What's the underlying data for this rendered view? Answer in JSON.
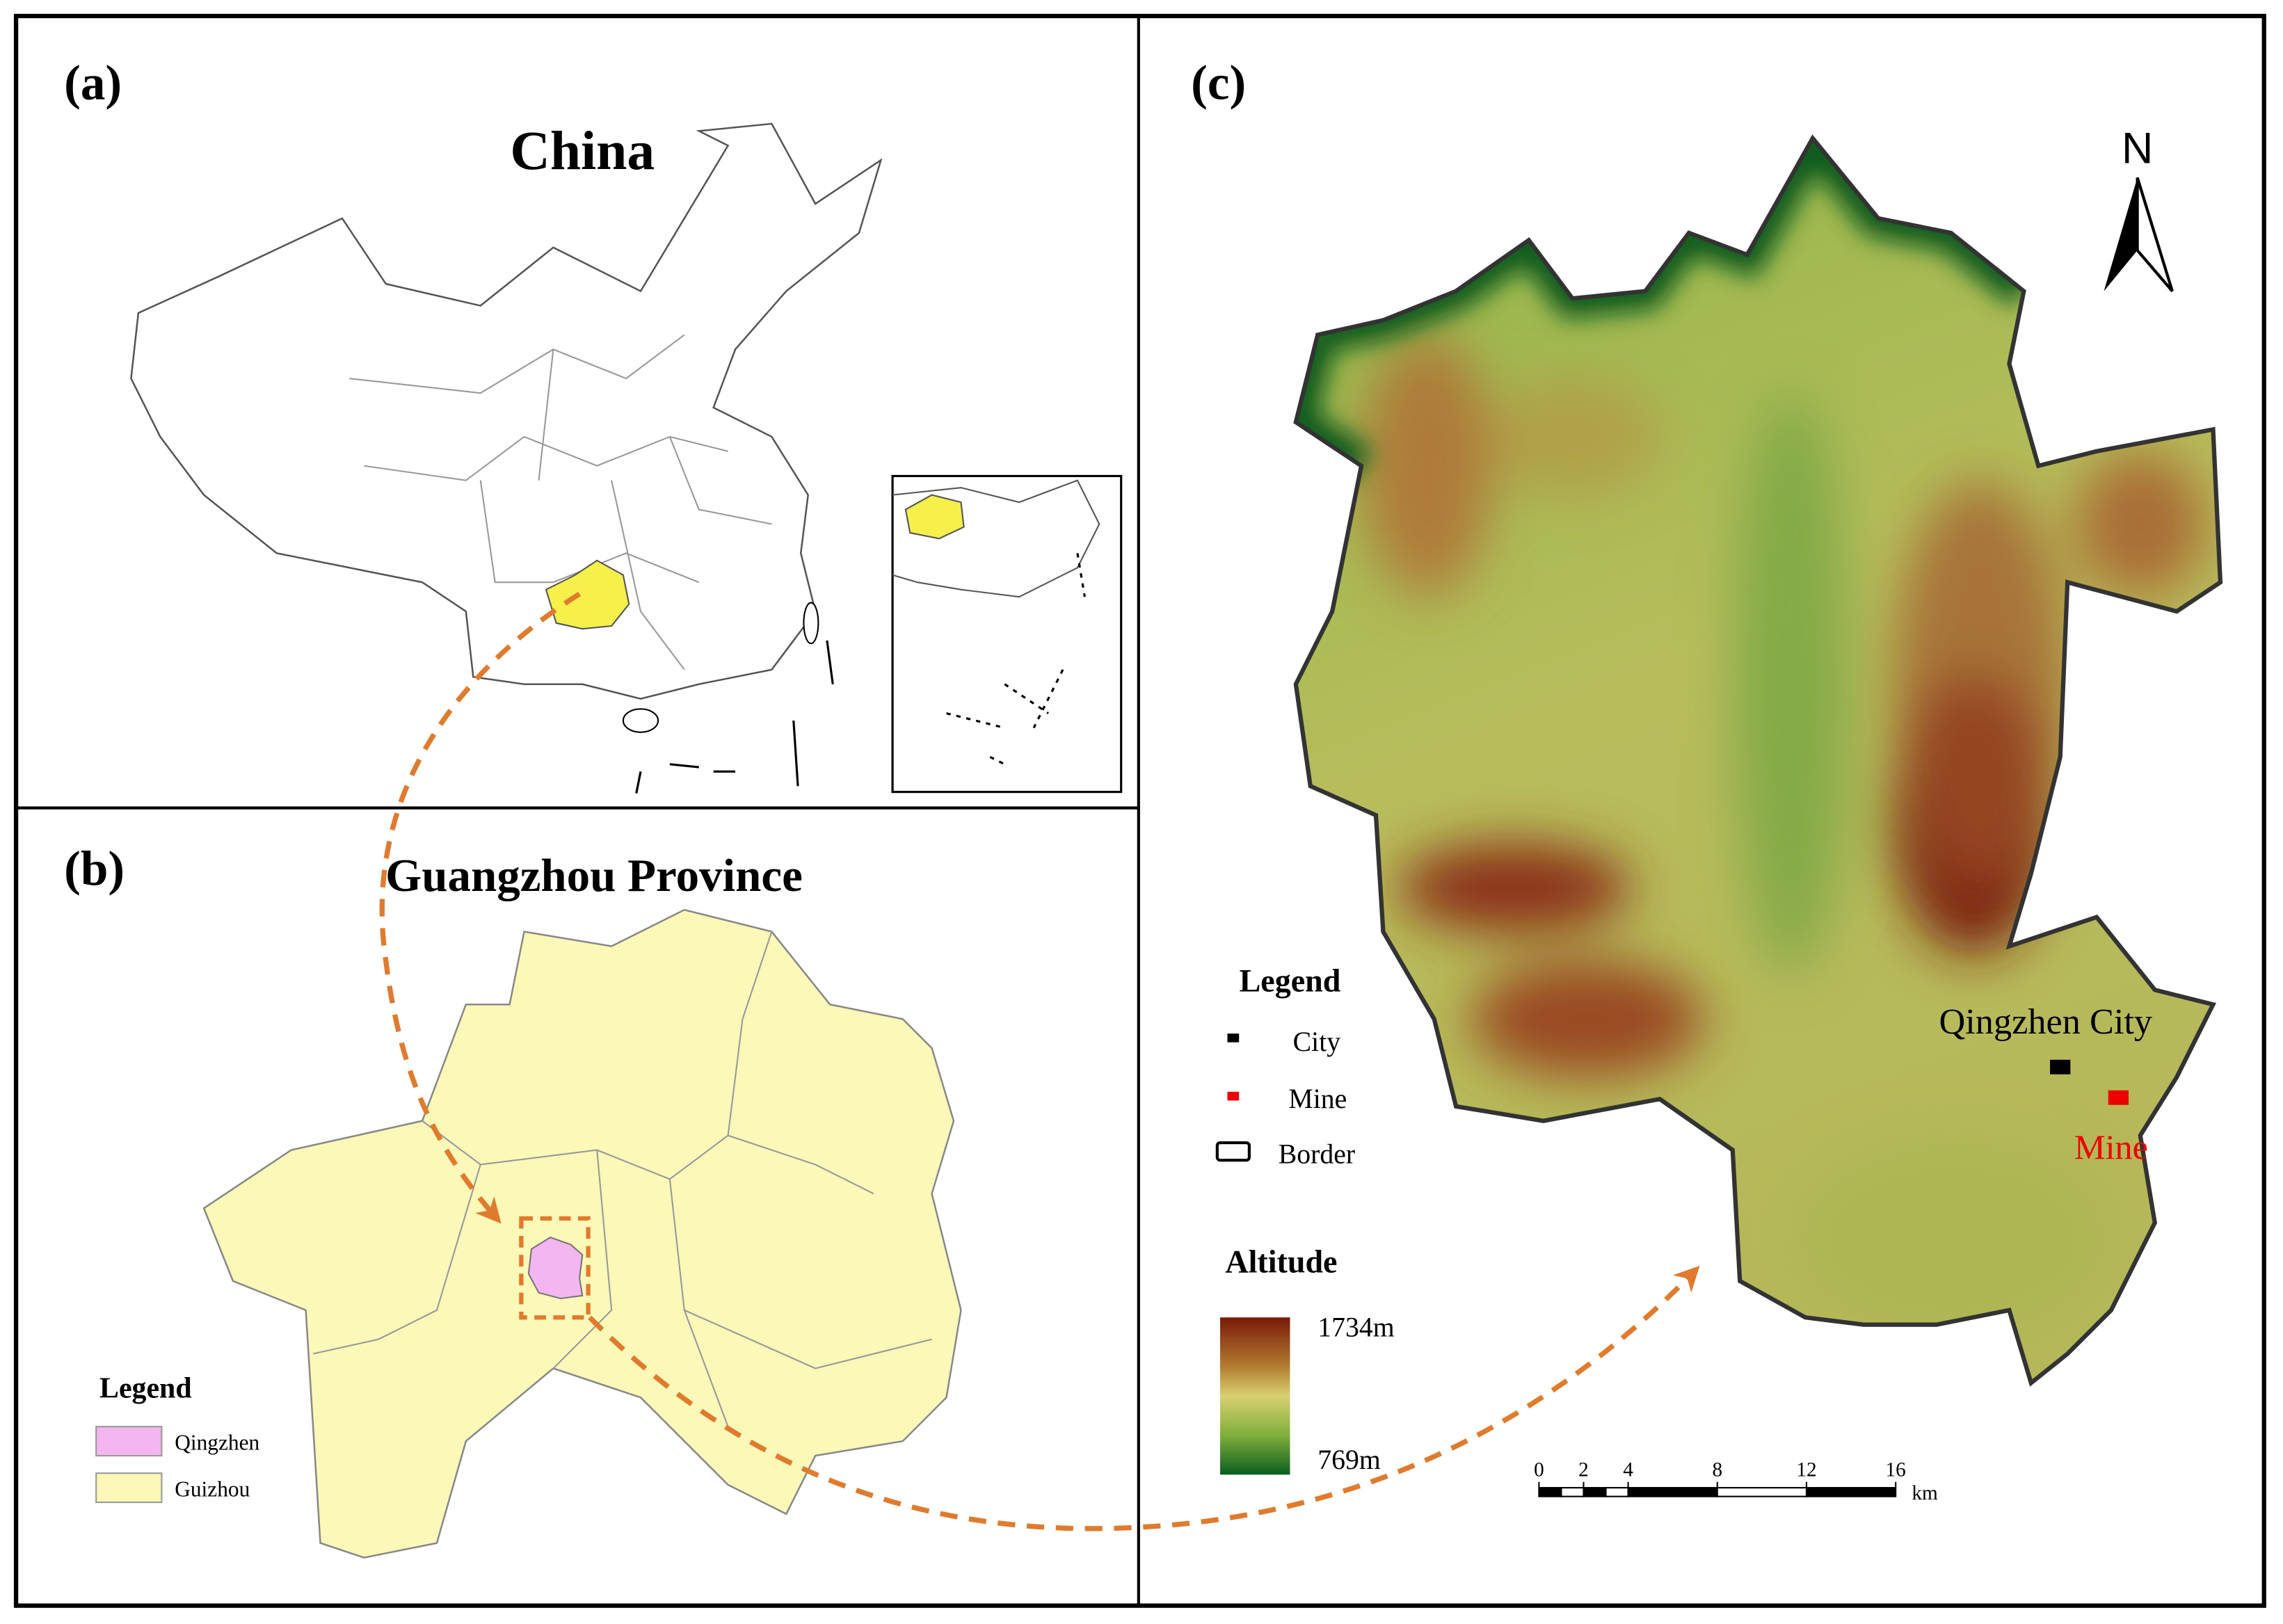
{
  "panel_a": {
    "label": "(a)",
    "title": "China"
  },
  "panel_b": {
    "label": "(b)",
    "title": "Guangzhou Province",
    "legend": {
      "title": "Legend",
      "items": [
        "Qingzhen",
        "Guizhou"
      ]
    }
  },
  "panel_c": {
    "label": "(c)",
    "north": "N",
    "legend": {
      "title": "Legend",
      "items": [
        "City",
        "Mine",
        "Border"
      ]
    },
    "altitude": {
      "title": "Altitude",
      "max": "1734m",
      "min": "769m"
    },
    "places": {
      "city": "Qingzhen City",
      "mine": "Mine"
    },
    "scale_bar": {
      "ticks": [
        "0",
        "2",
        "4",
        "8",
        "12",
        "16"
      ],
      "unit": "km"
    }
  }
}
